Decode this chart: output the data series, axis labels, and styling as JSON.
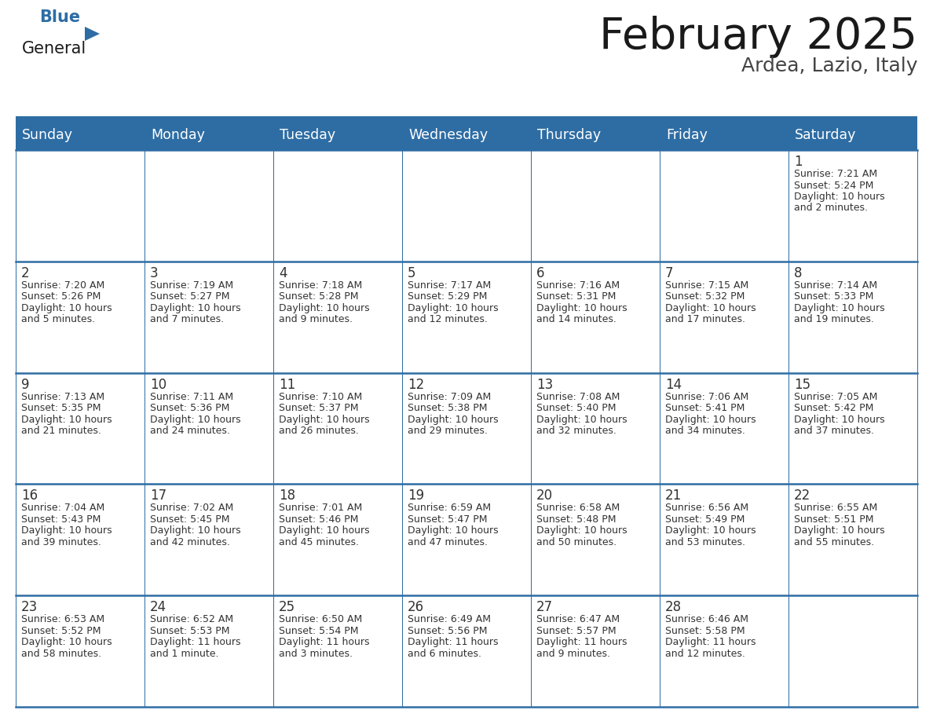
{
  "title": "February 2025",
  "subtitle": "Ardea, Lazio, Italy",
  "header_bg": "#2E6DA4",
  "header_text_color": "#FFFFFF",
  "cell_bg": "#FFFFFF",
  "border_color": "#2E6DA4",
  "text_color": "#333333",
  "day_headers": [
    "Sunday",
    "Monday",
    "Tuesday",
    "Wednesday",
    "Thursday",
    "Friday",
    "Saturday"
  ],
  "days_data": [
    {
      "day": 1,
      "col": 6,
      "row": 0,
      "sunrise": "7:21 AM",
      "sunset": "5:24 PM",
      "daylight": "10 hours and 2 minutes."
    },
    {
      "day": 2,
      "col": 0,
      "row": 1,
      "sunrise": "7:20 AM",
      "sunset": "5:26 PM",
      "daylight": "10 hours and 5 minutes."
    },
    {
      "day": 3,
      "col": 1,
      "row": 1,
      "sunrise": "7:19 AM",
      "sunset": "5:27 PM",
      "daylight": "10 hours and 7 minutes."
    },
    {
      "day": 4,
      "col": 2,
      "row": 1,
      "sunrise": "7:18 AM",
      "sunset": "5:28 PM",
      "daylight": "10 hours and 9 minutes."
    },
    {
      "day": 5,
      "col": 3,
      "row": 1,
      "sunrise": "7:17 AM",
      "sunset": "5:29 PM",
      "daylight": "10 hours and 12 minutes."
    },
    {
      "day": 6,
      "col": 4,
      "row": 1,
      "sunrise": "7:16 AM",
      "sunset": "5:31 PM",
      "daylight": "10 hours and 14 minutes."
    },
    {
      "day": 7,
      "col": 5,
      "row": 1,
      "sunrise": "7:15 AM",
      "sunset": "5:32 PM",
      "daylight": "10 hours and 17 minutes."
    },
    {
      "day": 8,
      "col": 6,
      "row": 1,
      "sunrise": "7:14 AM",
      "sunset": "5:33 PM",
      "daylight": "10 hours and 19 minutes."
    },
    {
      "day": 9,
      "col": 0,
      "row": 2,
      "sunrise": "7:13 AM",
      "sunset": "5:35 PM",
      "daylight": "10 hours and 21 minutes."
    },
    {
      "day": 10,
      "col": 1,
      "row": 2,
      "sunrise": "7:11 AM",
      "sunset": "5:36 PM",
      "daylight": "10 hours and 24 minutes."
    },
    {
      "day": 11,
      "col": 2,
      "row": 2,
      "sunrise": "7:10 AM",
      "sunset": "5:37 PM",
      "daylight": "10 hours and 26 minutes."
    },
    {
      "day": 12,
      "col": 3,
      "row": 2,
      "sunrise": "7:09 AM",
      "sunset": "5:38 PM",
      "daylight": "10 hours and 29 minutes."
    },
    {
      "day": 13,
      "col": 4,
      "row": 2,
      "sunrise": "7:08 AM",
      "sunset": "5:40 PM",
      "daylight": "10 hours and 32 minutes."
    },
    {
      "day": 14,
      "col": 5,
      "row": 2,
      "sunrise": "7:06 AM",
      "sunset": "5:41 PM",
      "daylight": "10 hours and 34 minutes."
    },
    {
      "day": 15,
      "col": 6,
      "row": 2,
      "sunrise": "7:05 AM",
      "sunset": "5:42 PM",
      "daylight": "10 hours and 37 minutes."
    },
    {
      "day": 16,
      "col": 0,
      "row": 3,
      "sunrise": "7:04 AM",
      "sunset": "5:43 PM",
      "daylight": "10 hours and 39 minutes."
    },
    {
      "day": 17,
      "col": 1,
      "row": 3,
      "sunrise": "7:02 AM",
      "sunset": "5:45 PM",
      "daylight": "10 hours and 42 minutes."
    },
    {
      "day": 18,
      "col": 2,
      "row": 3,
      "sunrise": "7:01 AM",
      "sunset": "5:46 PM",
      "daylight": "10 hours and 45 minutes."
    },
    {
      "day": 19,
      "col": 3,
      "row": 3,
      "sunrise": "6:59 AM",
      "sunset": "5:47 PM",
      "daylight": "10 hours and 47 minutes."
    },
    {
      "day": 20,
      "col": 4,
      "row": 3,
      "sunrise": "6:58 AM",
      "sunset": "5:48 PM",
      "daylight": "10 hours and 50 minutes."
    },
    {
      "day": 21,
      "col": 5,
      "row": 3,
      "sunrise": "6:56 AM",
      "sunset": "5:49 PM",
      "daylight": "10 hours and 53 minutes."
    },
    {
      "day": 22,
      "col": 6,
      "row": 3,
      "sunrise": "6:55 AM",
      "sunset": "5:51 PM",
      "daylight": "10 hours and 55 minutes."
    },
    {
      "day": 23,
      "col": 0,
      "row": 4,
      "sunrise": "6:53 AM",
      "sunset": "5:52 PM",
      "daylight": "10 hours and 58 minutes."
    },
    {
      "day": 24,
      "col": 1,
      "row": 4,
      "sunrise": "6:52 AM",
      "sunset": "5:53 PM",
      "daylight": "11 hours and 1 minute."
    },
    {
      "day": 25,
      "col": 2,
      "row": 4,
      "sunrise": "6:50 AM",
      "sunset": "5:54 PM",
      "daylight": "11 hours and 3 minutes."
    },
    {
      "day": 26,
      "col": 3,
      "row": 4,
      "sunrise": "6:49 AM",
      "sunset": "5:56 PM",
      "daylight": "11 hours and 6 minutes."
    },
    {
      "day": 27,
      "col": 4,
      "row": 4,
      "sunrise": "6:47 AM",
      "sunset": "5:57 PM",
      "daylight": "11 hours and 9 minutes."
    },
    {
      "day": 28,
      "col": 5,
      "row": 4,
      "sunrise": "6:46 AM",
      "sunset": "5:58 PM",
      "daylight": "11 hours and 12 minutes."
    }
  ],
  "num_rows": 5,
  "num_cols": 7,
  "fig_width": 11.88,
  "fig_height": 9.18,
  "dpi": 100
}
